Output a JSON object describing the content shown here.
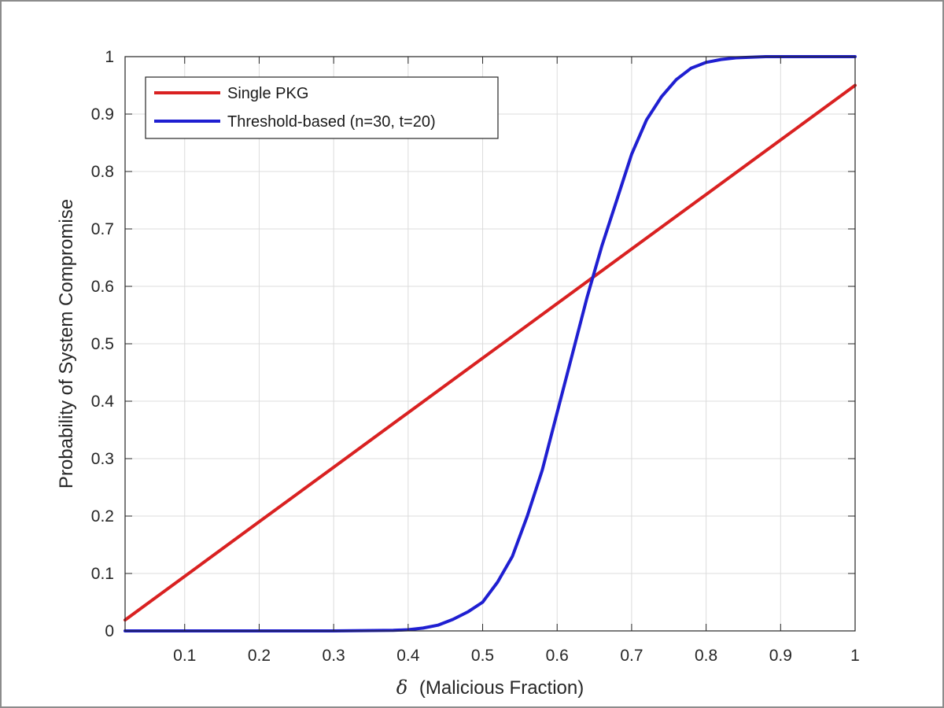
{
  "chart_data": {
    "type": "line",
    "xlabel_symbol": "δ",
    "xlabel": "(Malicious Fraction)",
    "ylabel": "Probability of System Compromise",
    "xlim": [
      0.02,
      1.0
    ],
    "ylim": [
      0,
      1
    ],
    "x_ticks": [
      "0.1",
      "0.2",
      "0.3",
      "0.4",
      "0.5",
      "0.6",
      "0.7",
      "0.8",
      "0.9",
      "1"
    ],
    "x_tick_values": [
      0.1,
      0.2,
      0.3,
      0.4,
      0.5,
      0.6,
      0.7,
      0.8,
      0.9,
      1.0
    ],
    "y_ticks": [
      "0",
      "0.1",
      "0.2",
      "0.3",
      "0.4",
      "0.5",
      "0.6",
      "0.7",
      "0.8",
      "0.9",
      "1"
    ],
    "y_tick_values": [
      0,
      0.1,
      0.2,
      0.3,
      0.4,
      0.5,
      0.6,
      0.7,
      0.8,
      0.9,
      1.0
    ],
    "grid": true,
    "legend_position": "top-left",
    "series": [
      {
        "name": "Single PKG",
        "color": "#d92121",
        "x": [
          0.02,
          0.1,
          0.2,
          0.3,
          0.4,
          0.5,
          0.6,
          0.7,
          0.8,
          0.9,
          1.0
        ],
        "y": [
          0.019,
          0.095,
          0.19,
          0.285,
          0.38,
          0.475,
          0.57,
          0.665,
          0.76,
          0.855,
          0.95
        ]
      },
      {
        "name": "Threshold-based (n=30, t=20)",
        "color": "#1f1fd1",
        "x": [
          0.02,
          0.3,
          0.38,
          0.4,
          0.42,
          0.44,
          0.46,
          0.48,
          0.5,
          0.52,
          0.54,
          0.56,
          0.58,
          0.6,
          0.62,
          0.64,
          0.66,
          0.68,
          0.7,
          0.72,
          0.74,
          0.76,
          0.78,
          0.8,
          0.82,
          0.84,
          0.86,
          0.88,
          0.9,
          0.95,
          1.0
        ],
        "y": [
          0.0,
          0.0,
          0.001,
          0.002,
          0.005,
          0.01,
          0.02,
          0.033,
          0.05,
          0.085,
          0.13,
          0.2,
          0.28,
          0.38,
          0.48,
          0.58,
          0.67,
          0.75,
          0.83,
          0.89,
          0.93,
          0.96,
          0.98,
          0.99,
          0.995,
          0.998,
          0.999,
          1.0,
          1.0,
          1.0,
          1.0
        ]
      }
    ]
  }
}
